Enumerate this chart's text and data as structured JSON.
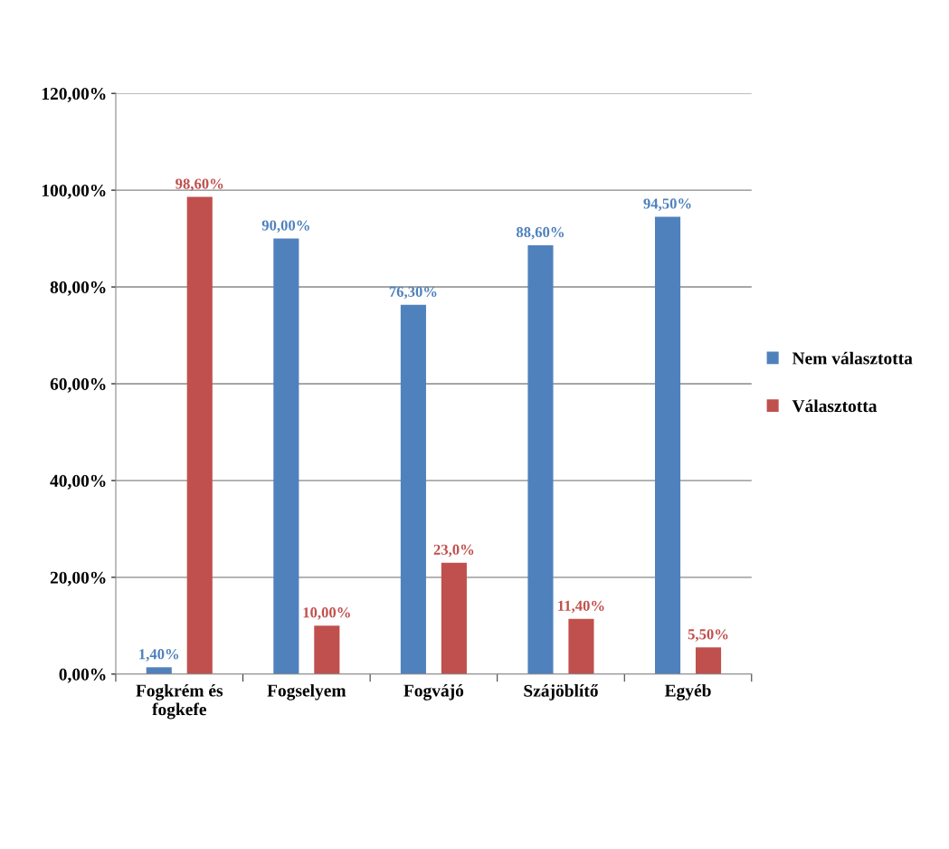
{
  "chart_data": {
    "type": "bar",
    "categories": [
      "Fogkrém és\nfogkefe",
      "Fogselyem",
      "Fogvájó",
      "Szájöblítő",
      "Egyéb"
    ],
    "series": [
      {
        "name": "Nem választotta",
        "color": "#4f81bd",
        "values": [
          1.4,
          90.0,
          76.3,
          88.6,
          94.5
        ],
        "value_labels": [
          "1,40%",
          "90,00%",
          "76,30%",
          "88,60%",
          "94,50%"
        ]
      },
      {
        "name": "Választotta",
        "color": "#c0504d",
        "values": [
          98.6,
          10.0,
          23.0,
          11.4,
          5.5
        ],
        "value_labels": [
          "98,60%",
          "10,00%",
          "23,0%",
          "11,40%",
          "5,50%"
        ]
      }
    ],
    "ylim": [
      0,
      120
    ],
    "yticks": [
      {
        "value": 0,
        "label": "0,00%"
      },
      {
        "value": 20,
        "label": "20,00%"
      },
      {
        "value": 40,
        "label": "40,00%"
      },
      {
        "value": 60,
        "label": "60,00%"
      },
      {
        "value": 80,
        "label": "80,00%"
      },
      {
        "value": 100,
        "label": "100,00%"
      },
      {
        "value": 120,
        "label": "120,00%"
      }
    ],
    "grid": "y",
    "legend": "right"
  }
}
